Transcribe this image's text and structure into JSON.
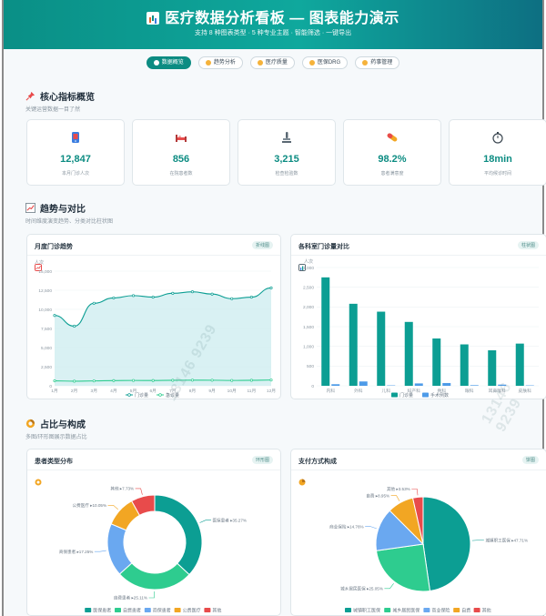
{
  "header": {
    "title": "医疗数据分析看板 — 图表能力演示",
    "subtitle": "支持 8 种图表类型 · 5 种专业主题 · 智能筛选 · 一键导出"
  },
  "tabs": [
    {
      "label": "数据概览",
      "active": true
    },
    {
      "label": "趋势分析",
      "active": false
    },
    {
      "label": "医疗质量",
      "active": false
    },
    {
      "label": "医保DRG",
      "active": false
    },
    {
      "label": "药事管理",
      "active": false
    }
  ],
  "sections": {
    "core": {
      "title": "核心指标概览",
      "sub": "关键运营数据一目了然"
    },
    "trend": {
      "title": "趋势与对比",
      "sub": "时间维度演变趋势、分类对比柱状图"
    },
    "ratio": {
      "title": "占比与构成",
      "sub": "多图/环形图展示数据占比"
    }
  },
  "kpis": [
    {
      "value": "12,847",
      "label": "本月门诊人次",
      "icon": "phone-icon"
    },
    {
      "value": "856",
      "label": "在院患者数",
      "icon": "bed-icon"
    },
    {
      "value": "3,215",
      "label": "检查检验数",
      "icon": "microscope-icon"
    },
    {
      "value": "98.2%",
      "label": "患者满意度",
      "icon": "pill-icon"
    },
    {
      "value": "18min",
      "label": "平均候诊时间",
      "icon": "stopwatch-icon"
    }
  ],
  "colors": {
    "teal": "#0c9e93",
    "green": "#2ecc8f",
    "blue": "#6aa8f0",
    "orange": "#f2a623",
    "red": "#e84b4b",
    "lightblue": "#4e9be8"
  },
  "chart_data": [
    {
      "type": "line",
      "panel_title": "月度门诊趋势",
      "tag": "折线图",
      "ylabel": "人次",
      "x": [
        "1月",
        "2月",
        "3月",
        "4月",
        "5月",
        "6月",
        "7月",
        "8月",
        "9月",
        "10月",
        "11月",
        "12月"
      ],
      "ylim": [
        0,
        15000
      ],
      "yticks": [
        "0",
        "2,500",
        "5,000",
        "7,500",
        "10,000",
        "12,500",
        "15,000"
      ],
      "series": [
        {
          "name": "门诊量",
          "values": [
            9200,
            7800,
            10800,
            11500,
            11800,
            11600,
            12100,
            12300,
            12000,
            11400,
            11600,
            12800
          ],
          "area": true
        },
        {
          "name": "急诊量",
          "values": [
            650,
            600,
            640,
            680,
            700,
            690,
            720,
            740,
            730,
            700,
            720,
            760
          ]
        }
      ],
      "legend": "bottom-center"
    },
    {
      "type": "bar",
      "panel_title": "各科室门诊量对比",
      "tag": "柱状图",
      "ylabel": "人次",
      "categories": [
        "内科",
        "外科",
        "儿科",
        "妇产科",
        "骨科",
        "眼科",
        "耳鼻喉科",
        "皮肤科"
      ],
      "ylim": [
        0,
        3000
      ],
      "yticks": [
        "0",
        "500",
        "1,000",
        "1,500",
        "2,000",
        "2,500",
        "3,000"
      ],
      "series": [
        {
          "name": "门诊量",
          "values": [
            2750,
            2080,
            1880,
            1620,
            1200,
            1050,
            900,
            1070
          ]
        },
        {
          "name": "手术例数",
          "values": [
            40,
            110,
            10,
            60,
            70,
            15,
            30,
            10
          ]
        }
      ],
      "legend": "bottom-center"
    },
    {
      "type": "pie",
      "panel_title": "患者类型分布",
      "tag": "环形图",
      "donut": true,
      "slices": [
        {
          "name": "医保患者",
          "value": 35.27,
          "label": "医保患者 ▸35.27%"
        },
        {
          "name": "自费患者",
          "value": 25.11,
          "label": "自费患者 ▸25.11%"
        },
        {
          "name": "商保患者",
          "value": 17.25,
          "label": "商保患者 ▸17.25%"
        },
        {
          "name": "公费医疗",
          "value": 10.05,
          "label": "公费医疗 ▸10.05%"
        },
        {
          "name": "其他",
          "value": 7.73,
          "label": "其他 ▸7.73%"
        }
      ],
      "legend": "bottom-center"
    },
    {
      "type": "pie",
      "panel_title": "支付方式构成",
      "tag": "饼图",
      "donut": false,
      "slices": [
        {
          "name": "城镇职工医保",
          "value": 47.71,
          "label": "城镇职工医保 ▸47.71%"
        },
        {
          "name": "城乡居民医保",
          "value": 25.05,
          "label": "城乡居民医保 ▸25.05%"
        },
        {
          "name": "商业保险",
          "value": 14.76,
          "label": "商业保险 ▸14.76%"
        },
        {
          "name": "自费",
          "value": 8.95,
          "label": "自费 ▸8.95%"
        },
        {
          "name": "其他",
          "value": 3.53,
          "label": "其他 ▸3.53%"
        }
      ],
      "legend": "bottom-center"
    }
  ],
  "watermark": "13146 9239"
}
